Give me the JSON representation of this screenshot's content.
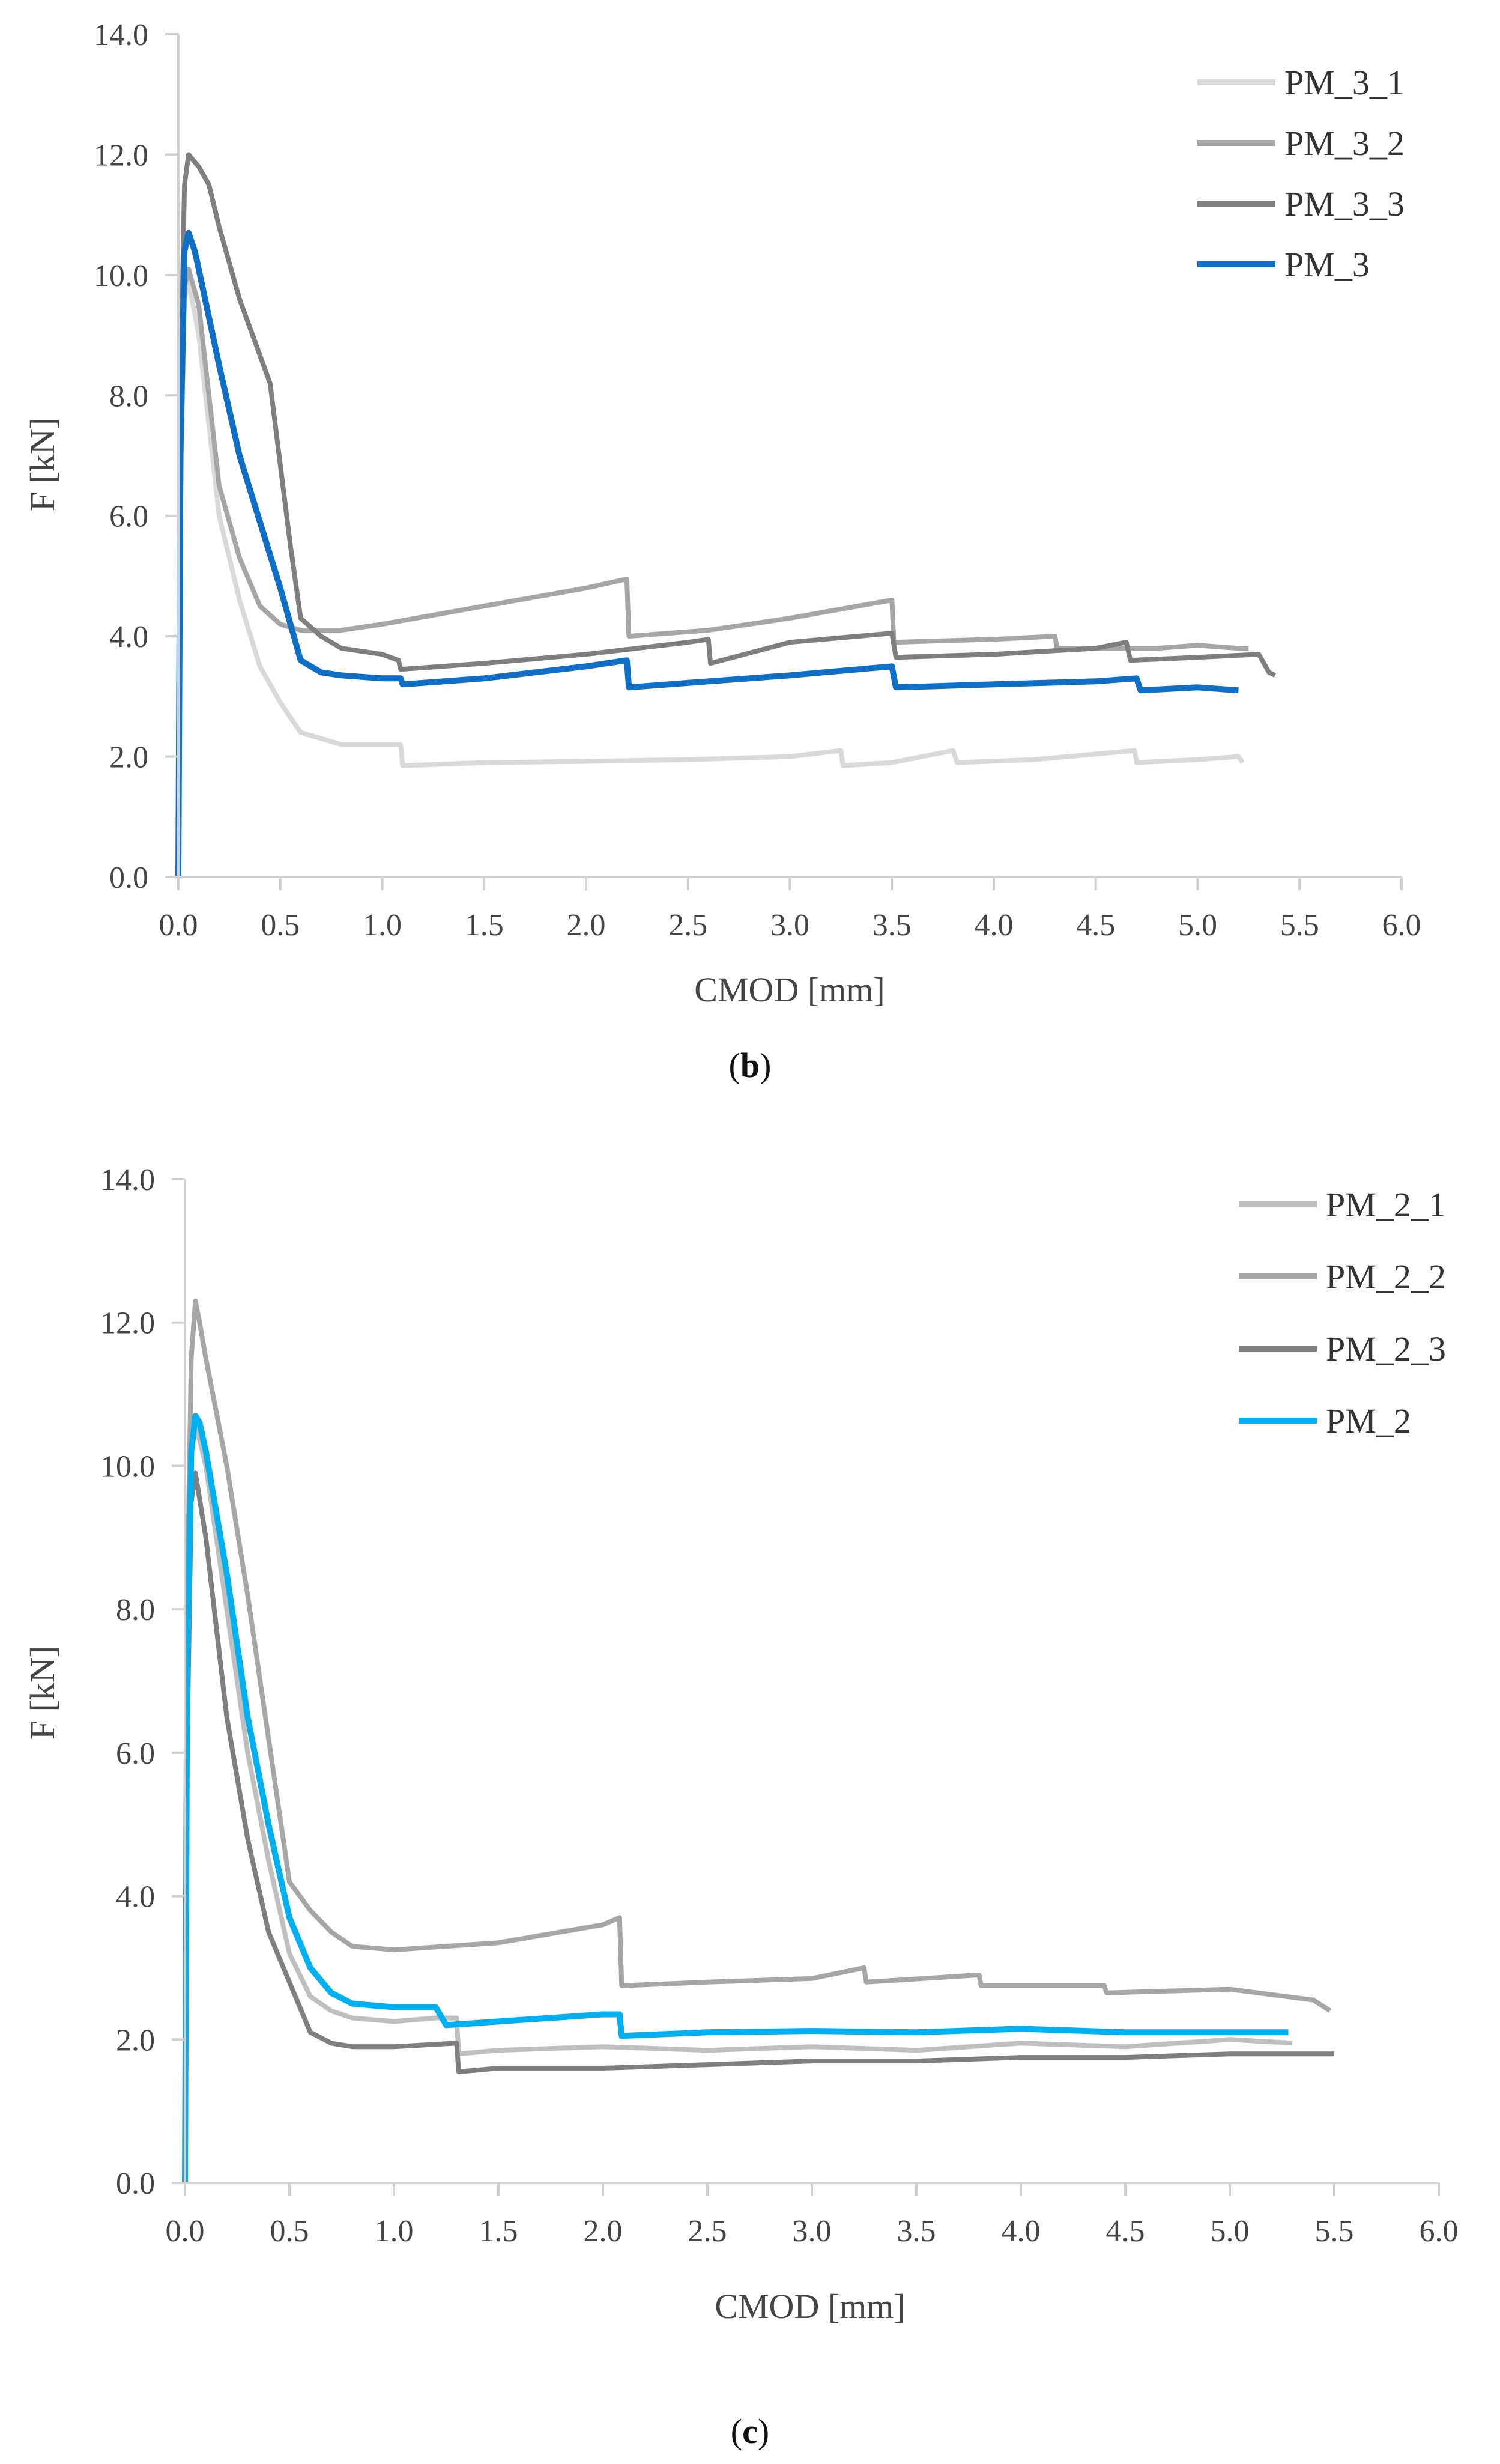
{
  "chart_data": [
    {
      "type": "line",
      "caption": {
        "open": "(",
        "letter": "b",
        "close": ")"
      },
      "xlabel": "CMOD [mm]",
      "ylabel": "F [kN]",
      "xlim": [
        0,
        6
      ],
      "ylim": [
        0,
        14
      ],
      "xticks": [
        "0.0",
        "0.5",
        "1.0",
        "1.5",
        "2.0",
        "2.5",
        "3.0",
        "3.5",
        "4.0",
        "4.5",
        "5.0",
        "5.5",
        "6.0"
      ],
      "yticks": [
        "0.0",
        "2.0",
        "4.0",
        "6.0",
        "8.0",
        "10.0",
        "12.0",
        "14.0"
      ],
      "grid": false,
      "legend": "top-right",
      "series": [
        {
          "name": "PM_3_1",
          "color": "#d9d9d9",
          "x": [
            0,
            0.01,
            0.03,
            0.05,
            0.1,
            0.15,
            0.2,
            0.3,
            0.4,
            0.5,
            0.6,
            0.7,
            0.8,
            1.0,
            1.09,
            1.1,
            1.5,
            2.0,
            2.5,
            3.0,
            3.25,
            3.26,
            3.5,
            3.8,
            3.82,
            4.2,
            4.69,
            4.7,
            5.0,
            5.2,
            5.22
          ],
          "y": [
            0,
            6.0,
            9.6,
            9.9,
            9.0,
            7.5,
            6.0,
            4.6,
            3.5,
            2.9,
            2.4,
            2.3,
            2.2,
            2.2,
            2.2,
            1.85,
            1.9,
            1.92,
            1.95,
            2.0,
            2.1,
            1.85,
            1.9,
            2.1,
            1.9,
            1.95,
            2.1,
            1.9,
            1.95,
            2.0,
            1.9
          ]
        },
        {
          "name": "PM_3_2",
          "color": "#a6a6a6",
          "x": [
            0,
            0.01,
            0.03,
            0.05,
            0.1,
            0.2,
            0.3,
            0.4,
            0.5,
            0.6,
            0.8,
            1.0,
            1.5,
            2.0,
            2.2,
            2.21,
            2.6,
            3.0,
            3.5,
            3.51,
            4.0,
            4.3,
            4.31,
            4.8,
            5.0,
            5.2,
            5.25
          ],
          "y": [
            0,
            7.0,
            9.8,
            10.1,
            9.5,
            6.5,
            5.3,
            4.5,
            4.2,
            4.1,
            4.1,
            4.2,
            4.5,
            4.8,
            4.95,
            4.0,
            4.1,
            4.3,
            4.6,
            3.9,
            3.95,
            4.0,
            3.8,
            3.8,
            3.85,
            3.8,
            3.8
          ]
        },
        {
          "name": "PM_3_3",
          "color": "#7f7f7f",
          "x": [
            0,
            0.01,
            0.03,
            0.05,
            0.1,
            0.15,
            0.2,
            0.3,
            0.45,
            0.55,
            0.6,
            0.7,
            0.8,
            1.0,
            1.08,
            1.09,
            1.5,
            2.0,
            2.5,
            2.6,
            2.61,
            3.0,
            3.5,
            3.52,
            4.0,
            4.5,
            4.65,
            4.67,
            5.0,
            5.3,
            5.35,
            5.38
          ],
          "y": [
            0,
            8.0,
            11.5,
            12.0,
            11.8,
            11.5,
            10.8,
            9.6,
            8.2,
            5.5,
            4.3,
            4.0,
            3.8,
            3.7,
            3.6,
            3.45,
            3.55,
            3.7,
            3.9,
            3.95,
            3.55,
            3.9,
            4.05,
            3.65,
            3.7,
            3.8,
            3.9,
            3.6,
            3.65,
            3.7,
            3.4,
            3.35
          ]
        },
        {
          "name": "PM_3",
          "color": "#0f6fc6",
          "x": [
            0,
            0.01,
            0.03,
            0.05,
            0.08,
            0.1,
            0.15,
            0.2,
            0.3,
            0.4,
            0.5,
            0.6,
            0.7,
            0.8,
            1.0,
            1.09,
            1.1,
            1.5,
            2.0,
            2.2,
            2.21,
            2.6,
            3.0,
            3.5,
            3.52,
            4.0,
            4.5,
            4.7,
            4.72,
            5.0,
            5.2
          ],
          "y": [
            0,
            7.0,
            10.4,
            10.7,
            10.4,
            10.1,
            9.3,
            8.5,
            7.0,
            5.9,
            4.8,
            3.6,
            3.4,
            3.35,
            3.3,
            3.3,
            3.2,
            3.3,
            3.5,
            3.6,
            3.15,
            3.25,
            3.35,
            3.5,
            3.15,
            3.2,
            3.25,
            3.3,
            3.1,
            3.15,
            3.1
          ]
        }
      ]
    },
    {
      "type": "line",
      "caption": {
        "open": "(",
        "letter": "c",
        "close": ")"
      },
      "xlabel": "CMOD [mm]",
      "ylabel": "F [kN]",
      "xlim": [
        0,
        6
      ],
      "ylim": [
        0,
        14
      ],
      "xticks": [
        "0.0",
        "0.5",
        "1.0",
        "1.5",
        "2.0",
        "2.5",
        "3.0",
        "3.5",
        "4.0",
        "4.5",
        "5.0",
        "5.5",
        "6.0"
      ],
      "yticks": [
        "0.0",
        "2.0",
        "4.0",
        "6.0",
        "8.0",
        "10.0",
        "12.0",
        "14.0"
      ],
      "grid": false,
      "legend": "top-right",
      "series": [
        {
          "name": "PM_2_1",
          "color": "#bfbfbf",
          "x": [
            0,
            0.01,
            0.03,
            0.05,
            0.1,
            0.2,
            0.3,
            0.4,
            0.5,
            0.6,
            0.7,
            0.8,
            1.0,
            1.2,
            1.3,
            1.31,
            1.5,
            2.0,
            2.5,
            3.0,
            3.5,
            4.0,
            4.5,
            5.0,
            5.3
          ],
          "y": [
            0,
            7.0,
            10.2,
            10.6,
            10.0,
            8.0,
            6.0,
            4.5,
            3.2,
            2.6,
            2.4,
            2.3,
            2.25,
            2.3,
            2.3,
            1.8,
            1.85,
            1.9,
            1.85,
            1.9,
            1.85,
            1.95,
            1.9,
            2.0,
            1.95
          ]
        },
        {
          "name": "PM_2_2",
          "color": "#a6a6a6",
          "x": [
            0,
            0.01,
            0.03,
            0.05,
            0.07,
            0.1,
            0.2,
            0.3,
            0.4,
            0.5,
            0.6,
            0.7,
            0.8,
            1.0,
            1.5,
            2.0,
            2.08,
            2.09,
            2.5,
            3.0,
            3.25,
            3.26,
            3.8,
            3.81,
            4.4,
            4.41,
            5.0,
            5.4,
            5.48
          ],
          "y": [
            0,
            8.0,
            11.5,
            12.3,
            12.0,
            11.5,
            10.0,
            8.2,
            6.2,
            4.2,
            3.8,
            3.5,
            3.3,
            3.25,
            3.35,
            3.6,
            3.7,
            2.75,
            2.8,
            2.85,
            3.0,
            2.8,
            2.9,
            2.75,
            2.75,
            2.65,
            2.7,
            2.55,
            2.4
          ]
        },
        {
          "name": "PM_2_3",
          "color": "#7f7f7f",
          "x": [
            0,
            0.01,
            0.03,
            0.05,
            0.1,
            0.2,
            0.3,
            0.4,
            0.5,
            0.6,
            0.7,
            0.8,
            1.0,
            1.3,
            1.31,
            1.5,
            2.0,
            2.5,
            3.0,
            3.5,
            4.0,
            4.5,
            5.0,
            5.5
          ],
          "y": [
            0,
            6.0,
            9.5,
            9.9,
            9.0,
            6.5,
            4.8,
            3.5,
            2.8,
            2.1,
            1.95,
            1.9,
            1.9,
            1.95,
            1.55,
            1.6,
            1.6,
            1.65,
            1.7,
            1.7,
            1.75,
            1.75,
            1.8,
            1.8
          ]
        },
        {
          "name": "PM_2",
          "color": "#00b0f0",
          "x": [
            0,
            0.01,
            0.03,
            0.05,
            0.07,
            0.1,
            0.2,
            0.3,
            0.4,
            0.5,
            0.6,
            0.7,
            0.8,
            1.0,
            1.2,
            1.25,
            1.5,
            2.0,
            2.08,
            2.09,
            2.5,
            3.0,
            3.5,
            4.0,
            4.5,
            5.0,
            5.28
          ],
          "y": [
            0,
            7.0,
            10.2,
            10.7,
            10.6,
            10.2,
            8.5,
            6.5,
            5.0,
            3.7,
            3.0,
            2.65,
            2.5,
            2.45,
            2.45,
            2.2,
            2.25,
            2.35,
            2.35,
            2.05,
            2.1,
            2.12,
            2.1,
            2.15,
            2.1,
            2.1,
            2.1
          ]
        }
      ]
    }
  ]
}
